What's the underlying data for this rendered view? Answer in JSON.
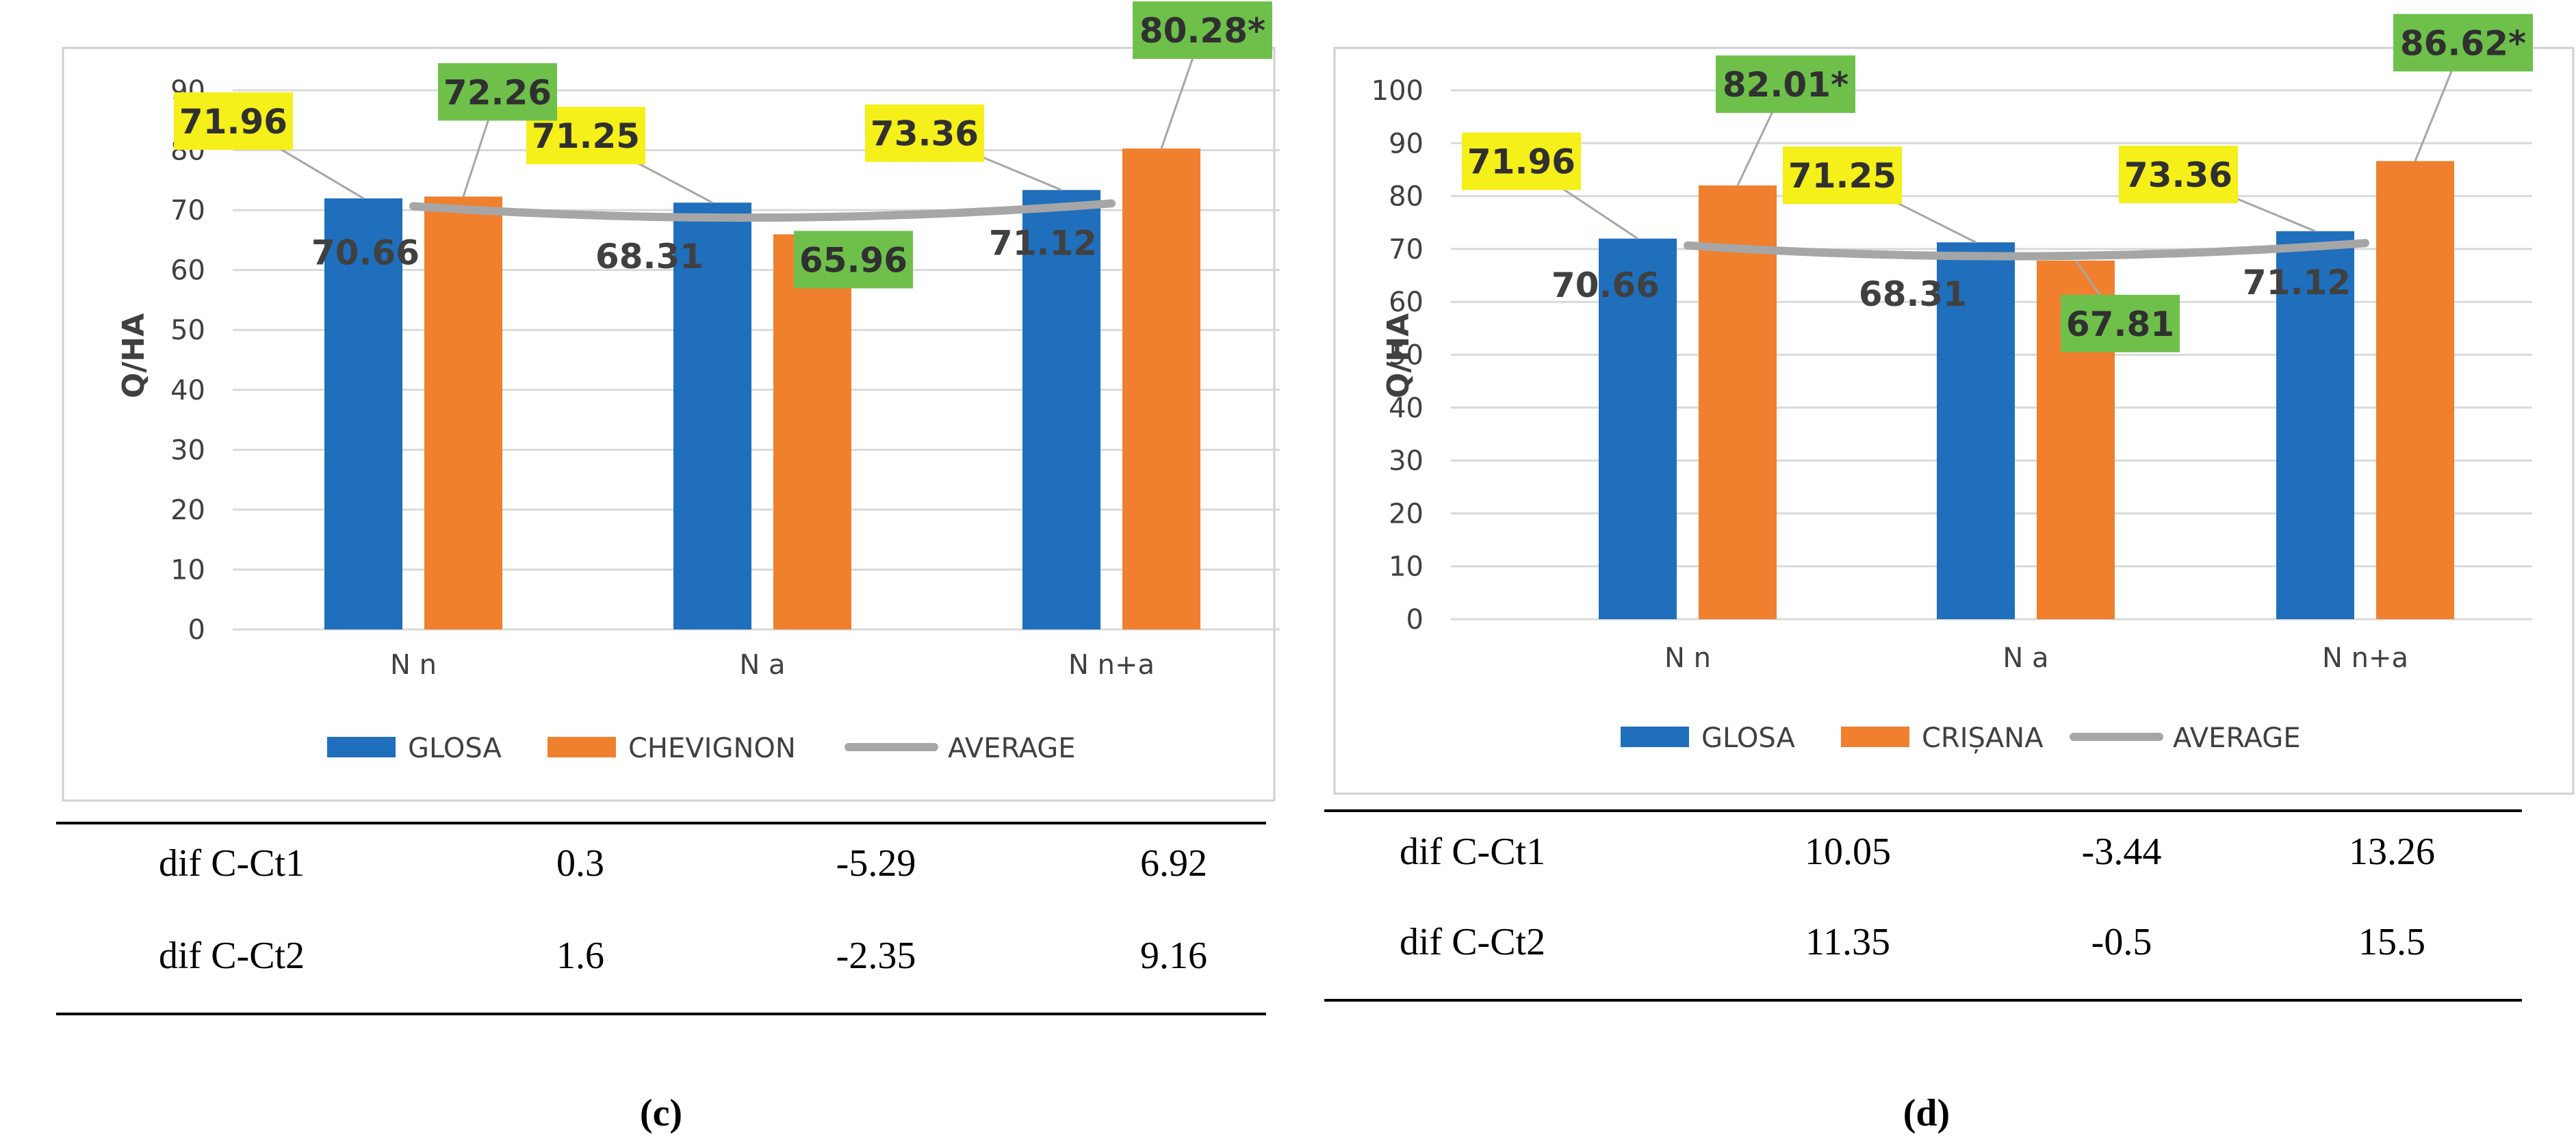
{
  "colors": {
    "glosa": "#1F6FBD",
    "second_variety": "#F07F2E",
    "average": "#A6A6A6",
    "label_yellow": "#F5EF1A",
    "label_green": "#6EC04B",
    "axis_text": "#404040",
    "grid": "#D9D9D9"
  },
  "chart_data": [
    {
      "type": "bar",
      "panel_label": "(c)",
      "ylabel": "Q/HA",
      "ylim": [
        0,
        90
      ],
      "yticks": [
        0,
        10,
        20,
        30,
        40,
        50,
        60,
        70,
        80,
        90
      ],
      "categories": [
        "N n",
        "N a",
        "N n+a"
      ],
      "series": [
        {
          "name": "GLOSA",
          "kind": "bar",
          "values": [
            71.96,
            71.25,
            73.36
          ],
          "labels": [
            "71.96",
            "71.25",
            "73.36"
          ],
          "label_style": "yellow"
        },
        {
          "name": "CHEVIGNON",
          "kind": "bar",
          "values": [
            72.26,
            65.96,
            80.28
          ],
          "labels": [
            "72.26",
            "65.96",
            "80.28*"
          ],
          "label_style": "green"
        },
        {
          "name": "AVERAGE",
          "kind": "line",
          "values": [
            70.66,
            68.31,
            71.12
          ],
          "labels": [
            "70.66",
            "68.31",
            "71.12"
          ]
        }
      ],
      "legend": [
        "GLOSA",
        "CHEVIGNON",
        "AVERAGE"
      ],
      "legend_position": "bottom",
      "table": {
        "rows": [
          {
            "label": "dif C-Ct1",
            "values": [
              "0.3",
              "-5.29",
              "6.92"
            ]
          },
          {
            "label": "dif C-Ct2",
            "values": [
              "1.6",
              "-2.35",
              "9.16"
            ]
          }
        ]
      }
    },
    {
      "type": "bar",
      "panel_label": "(d)",
      "ylabel": "Q/HA",
      "ylim": [
        0,
        100
      ],
      "yticks": [
        0,
        10,
        20,
        30,
        40,
        50,
        60,
        70,
        80,
        90,
        100
      ],
      "categories": [
        "N n",
        "N a",
        "N n+a"
      ],
      "series": [
        {
          "name": "GLOSA",
          "kind": "bar",
          "values": [
            71.96,
            71.25,
            73.36
          ],
          "labels": [
            "71.96",
            "71.25",
            "73.36"
          ],
          "label_style": "yellow"
        },
        {
          "name": "CRIȘANA",
          "kind": "bar",
          "values": [
            82.01,
            67.81,
            86.62
          ],
          "labels": [
            "82.01*",
            "67.81",
            "86.62*"
          ],
          "label_style": "green"
        },
        {
          "name": "AVERAGE",
          "kind": "line",
          "values": [
            70.66,
            68.31,
            71.12
          ],
          "labels": [
            "70.66",
            "68.31",
            "71.12"
          ]
        }
      ],
      "legend": [
        "GLOSA",
        "CRIȘANA",
        "AVERAGE"
      ],
      "legend_position": "bottom",
      "table": {
        "rows": [
          {
            "label": "dif C-Ct1",
            "values": [
              "10.05",
              "-3.44",
              "13.26"
            ]
          },
          {
            "label": "dif C-Ct2",
            "values": [
              "11.35",
              "-0.5",
              "15.5"
            ]
          }
        ]
      }
    }
  ]
}
